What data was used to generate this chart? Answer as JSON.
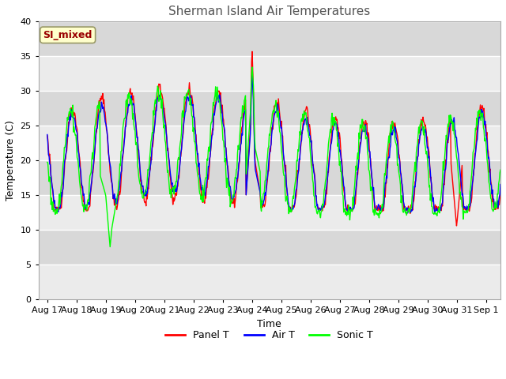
{
  "title": "Sherman Island Air Temperatures",
  "xlabel": "Time",
  "ylabel": "Temperature (C)",
  "ylim": [
    0,
    40
  ],
  "yticks": [
    0,
    5,
    10,
    15,
    20,
    25,
    30,
    35,
    40
  ],
  "x_tick_labels": [
    "Aug 17",
    "Aug 18",
    "Aug 19",
    "Aug 20",
    "Aug 21",
    "Aug 22",
    "Aug 23",
    "Aug 24",
    "Aug 25",
    "Aug 26",
    "Aug 27",
    "Aug 28",
    "Aug 29",
    "Aug 30",
    "Aug 31",
    "Sep 1"
  ],
  "annotation_text": "SI_mixed",
  "annotation_color": "#990000",
  "annotation_bg": "#ffffcc",
  "annotation_edge": "#999966",
  "line_colors": [
    "red",
    "blue",
    "lime"
  ],
  "line_labels": [
    "Panel T",
    "Air T",
    "Sonic T"
  ],
  "plot_bg_light": "#ebebeb",
  "plot_bg_dark": "#d8d8d8",
  "grid_color": "#ffffff",
  "title_color": "#555555",
  "title_fontsize": 11,
  "label_fontsize": 9,
  "tick_fontsize": 8,
  "line_width": 1.0
}
